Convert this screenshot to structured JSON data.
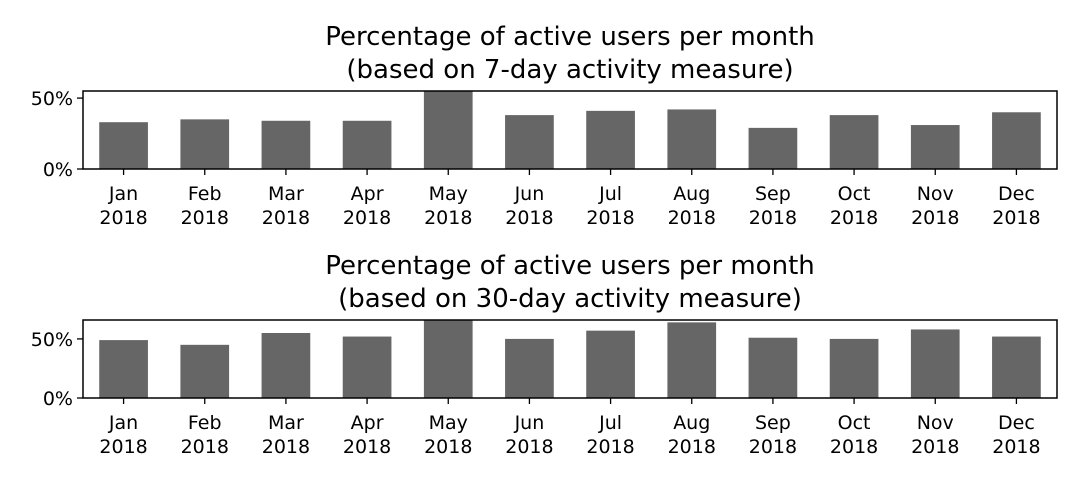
{
  "colors": {
    "bar": "#666666",
    "axis": "#000000",
    "background": "#ffffff"
  },
  "chart_data": [
    {
      "type": "bar",
      "title": "Percentage of active users per month",
      "subtitle": "(based on 7-day activity measure)",
      "categories": [
        "Jan\n2018",
        "Feb\n2018",
        "Mar\n2018",
        "Apr\n2018",
        "May\n2018",
        "Jun\n2018",
        "Jul\n2018",
        "Aug\n2018",
        "Sep\n2018",
        "Oct\n2018",
        "Nov\n2018",
        "Dec\n2018"
      ],
      "values": [
        33,
        35,
        34,
        34,
        55,
        38,
        41,
        42,
        29,
        38,
        31,
        40
      ],
      "unit": "%",
      "yticks": [
        "0%",
        "50%"
      ],
      "ytick_values": [
        0,
        50
      ],
      "ylim": [
        0,
        55
      ],
      "xlabel": "",
      "ylabel": "",
      "grid": false,
      "legend": "none"
    },
    {
      "type": "bar",
      "title": "Percentage of active users per month",
      "subtitle": "(based on 30-day activity measure)",
      "categories": [
        "Jan\n2018",
        "Feb\n2018",
        "Mar\n2018",
        "Apr\n2018",
        "May\n2018",
        "Jun\n2018",
        "Jul\n2018",
        "Aug\n2018",
        "Sep\n2018",
        "Oct\n2018",
        "Nov\n2018",
        "Dec\n2018"
      ],
      "values": [
        49,
        45,
        55,
        52,
        66,
        50,
        57,
        64,
        51,
        50,
        58,
        52
      ],
      "unit": "%",
      "yticks": [
        "0%",
        "50%"
      ],
      "ytick_values": [
        0,
        50
      ],
      "ylim": [
        0,
        66
      ],
      "xlabel": "",
      "ylabel": "",
      "grid": false,
      "legend": "none"
    }
  ]
}
